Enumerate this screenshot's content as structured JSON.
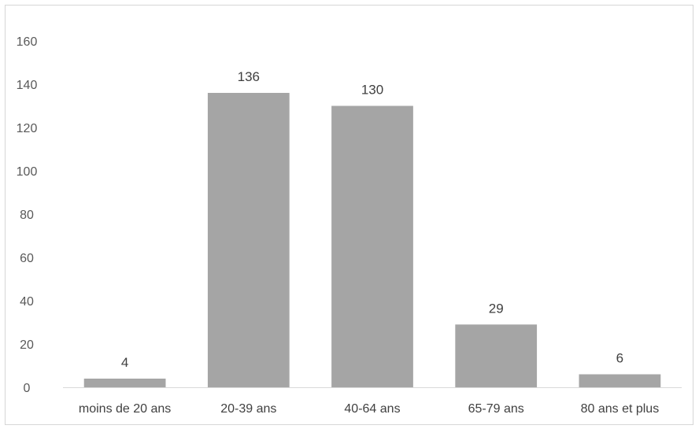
{
  "chart_data": {
    "type": "bar",
    "title": "",
    "xlabel": "",
    "ylabel": "",
    "categories": [
      "moins de 20 ans",
      "20-39 ans",
      "40-64 ans",
      "65-79 ans",
      "80 ans et plus"
    ],
    "values": [
      4,
      136,
      130,
      29,
      6
    ],
    "ylim": [
      0,
      160
    ],
    "yticks": [
      "0",
      "20",
      "40",
      "60",
      "80",
      "100",
      "120",
      "140",
      "160"
    ],
    "data_labels": [
      "4",
      "136",
      "130",
      "29",
      "6"
    ],
    "grid": false,
    "legend": "none",
    "colors": {
      "bar": "#a5a5a5",
      "axis": "#d9d9d9",
      "frame": "#d6d6d6"
    }
  }
}
